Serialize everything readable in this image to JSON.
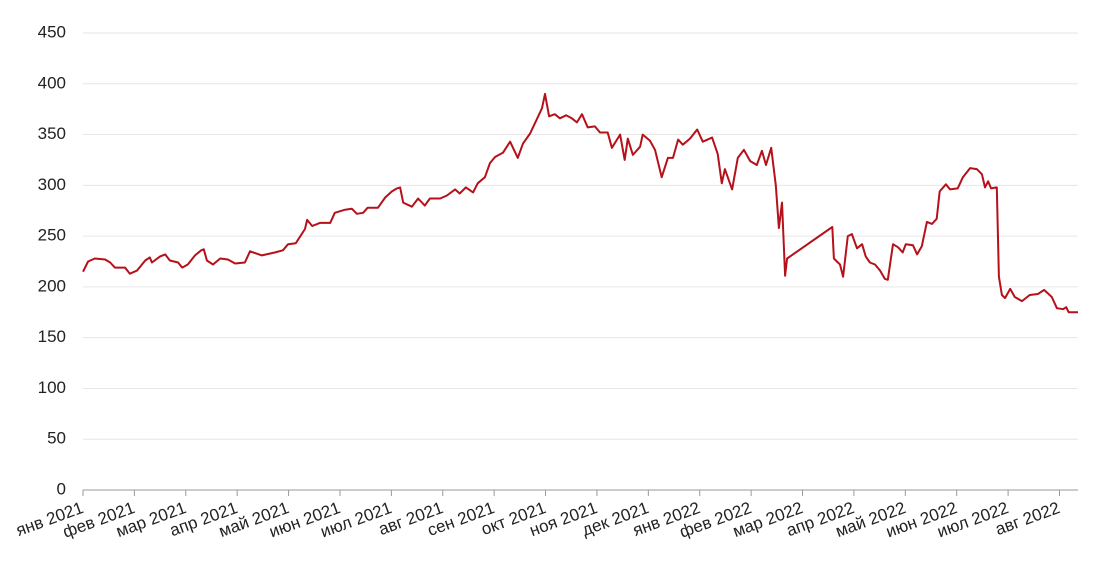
{
  "chart_data": {
    "type": "line",
    "color": "#b5111b",
    "grid": true,
    "xlim": [
      0,
      19.36
    ],
    "xticks": [
      {
        "value": 0,
        "label": "янв 2021"
      },
      {
        "value": 1,
        "label": "фев 2021"
      },
      {
        "value": 2,
        "label": "мар 2021"
      },
      {
        "value": 3,
        "label": "апр 2021"
      },
      {
        "value": 4,
        "label": "май 2021"
      },
      {
        "value": 5,
        "label": "июн 2021"
      },
      {
        "value": 6,
        "label": "июл 2021"
      },
      {
        "value": 7,
        "label": "авг 2021"
      },
      {
        "value": 8,
        "label": "сен 2021"
      },
      {
        "value": 9,
        "label": "окт 2021"
      },
      {
        "value": 10,
        "label": "ноя 2021"
      },
      {
        "value": 11,
        "label": "дек 2021"
      },
      {
        "value": 12,
        "label": "янв 2022"
      },
      {
        "value": 13,
        "label": "фев 2022"
      },
      {
        "value": 14,
        "label": "мар 2022"
      },
      {
        "value": 15,
        "label": "апр 2022"
      },
      {
        "value": 16,
        "label": "май 2022"
      },
      {
        "value": 17,
        "label": "июн 2022"
      },
      {
        "value": 18,
        "label": "июл 2022"
      },
      {
        "value": 19,
        "label": "авг 2022"
      }
    ],
    "ylim": [
      0,
      450
    ],
    "yticks": [
      0,
      50,
      100,
      150,
      200,
      250,
      300,
      350,
      400,
      450
    ],
    "x": [
      0,
      0.1,
      0.23,
      0.43,
      0.53,
      0.62,
      0.82,
      0.91,
      1.05,
      1.21,
      1.3,
      1.34,
      1.5,
      1.6,
      1.69,
      1.85,
      1.93,
      2.04,
      2.18,
      2.3,
      2.35,
      2.41,
      2.53,
      2.67,
      2.82,
      2.96,
      3.15,
      3.25,
      3.48,
      3.74,
      3.89,
      3.99,
      4.14,
      4.32,
      4.36,
      4.46,
      4.61,
      4.81,
      4.9,
      5.1,
      5.23,
      5.33,
      5.45,
      5.54,
      5.74,
      5.88,
      6.01,
      6.11,
      6.17,
      6.23,
      6.4,
      6.52,
      6.65,
      6.75,
      6.95,
      7.08,
      7.24,
      7.33,
      7.45,
      7.59,
      7.68,
      7.82,
      7.92,
      8.02,
      8.17,
      8.31,
      8.46,
      8.56,
      8.7,
      8.83,
      8.93,
      8.99,
      9.07,
      9.18,
      9.28,
      9.4,
      9.51,
      9.61,
      9.71,
      9.82,
      9.96,
      10.06,
      10.21,
      10.29,
      10.45,
      10.54,
      10.6,
      10.7,
      10.84,
      10.89,
      11.03,
      11.13,
      11.26,
      11.38,
      11.48,
      11.58,
      11.67,
      11.81,
      11.95,
      12.06,
      12.24,
      12.35,
      12.43,
      12.49,
      12.63,
      12.74,
      12.86,
      12.98,
      13.11,
      13.21,
      13.29,
      13.39,
      13.48,
      13.54,
      13.6,
      13.66,
      13.7,
      14.58,
      14.61,
      14.73,
      14.79,
      14.88,
      14.96,
      15.06,
      15.16,
      15.23,
      15.31,
      15.41,
      15.51,
      15.6,
      15.66,
      15.76,
      15.86,
      15.95,
      16.01,
      16.15,
      16.23,
      16.32,
      16.42,
      16.52,
      16.61,
      16.67,
      16.79,
      16.87,
      17.02,
      17.12,
      17.26,
      17.39,
      17.49,
      17.55,
      17.61,
      17.67,
      17.78,
      17.82,
      17.88,
      17.94,
      18.04,
      18.13,
      18.27,
      18.42,
      18.58,
      18.7,
      18.85,
      18.95,
      19.07,
      19.13,
      19.18,
      19.36
    ],
    "values": [
      215,
      225,
      228,
      227,
      224,
      219,
      219,
      213,
      216,
      226,
      229,
      224,
      230,
      232,
      226,
      224,
      219,
      222,
      231,
      236,
      237,
      226,
      222,
      228,
      227,
      223,
      224,
      235,
      231,
      234,
      236,
      242,
      243,
      257,
      266,
      260,
      263,
      263,
      273,
      276,
      277,
      272,
      273,
      278,
      278,
      288,
      294,
      297,
      298,
      283,
      279,
      287,
      280,
      287,
      287,
      290,
      296,
      292,
      298,
      293,
      302,
      308,
      322,
      328,
      332,
      343,
      327,
      341,
      351,
      365,
      376,
      390,
      368,
      370,
      366,
      369,
      366,
      362,
      370,
      357,
      358,
      352,
      352,
      337,
      350,
      325,
      346,
      330,
      338,
      350,
      344,
      335,
      308,
      327,
      327,
      345,
      340,
      346,
      355,
      343,
      347,
      331,
      302,
      316,
      296,
      327,
      335,
      324,
      320,
      334,
      320,
      337,
      300,
      258,
      283,
      211,
      228,
      259,
      228,
      222,
      210,
      250,
      252,
      238,
      242,
      230,
      224,
      222,
      216,
      208,
      207,
      242,
      239,
      234,
      242,
      241,
      232,
      240,
      264,
      262,
      267,
      294,
      301,
      296,
      297,
      308,
      317,
      316,
      311,
      298,
      304,
      297,
      298,
      210,
      192,
      189,
      198,
      190,
      186,
      192,
      193,
      197,
      190,
      179,
      178,
      180,
      175,
      175
    ]
  }
}
